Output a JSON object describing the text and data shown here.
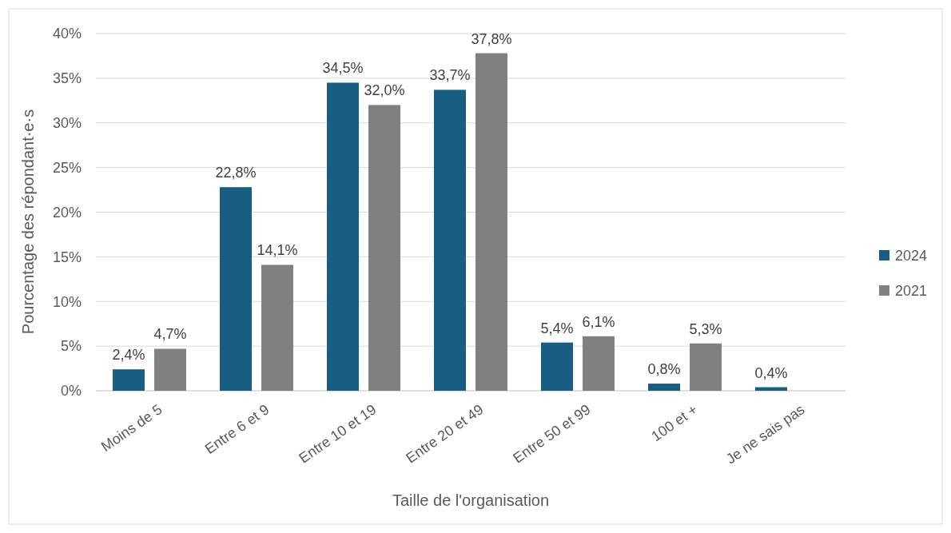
{
  "chart_data": {
    "type": "bar",
    "xlabel": "Taille de l'organisation",
    "ylabel": "Pourcentage des répondant·e·s",
    "categories": [
      "Moins de 5",
      "Entre 6 et 9",
      "Entre 10 et 19",
      "Entre 20 et 49",
      "Entre 50 et 99",
      "100 et +",
      "Je ne sais pas"
    ],
    "series": [
      {
        "name": "2024",
        "color": "#175e82",
        "values": [
          2.4,
          22.8,
          34.5,
          33.7,
          5.4,
          0.8,
          0.4
        ],
        "value_labels": [
          "2,4%",
          "22,8%",
          "34,5%",
          "33,7%",
          "5,4%",
          "0,8%",
          "0,4%"
        ]
      },
      {
        "name": "2021",
        "color": "#808080",
        "values": [
          4.7,
          14.1,
          32.0,
          37.8,
          6.1,
          5.3,
          null
        ],
        "value_labels": [
          "4,7%",
          "14,1%",
          "32,0%",
          "37,8%",
          "6,1%",
          "5,3%",
          null
        ]
      }
    ],
    "ylim": [
      0,
      40
    ],
    "yticks": [
      {
        "value": 0,
        "label": "0%"
      },
      {
        "value": 5,
        "label": "5%"
      },
      {
        "value": 10,
        "label": "10%"
      },
      {
        "value": 15,
        "label": "15%"
      },
      {
        "value": 20,
        "label": "20%"
      },
      {
        "value": 25,
        "label": "25%"
      },
      {
        "value": 30,
        "label": "30%"
      },
      {
        "value": 35,
        "label": "35%"
      },
      {
        "value": 40,
        "label": "40%"
      }
    ],
    "grid": "y",
    "legend": "right"
  }
}
